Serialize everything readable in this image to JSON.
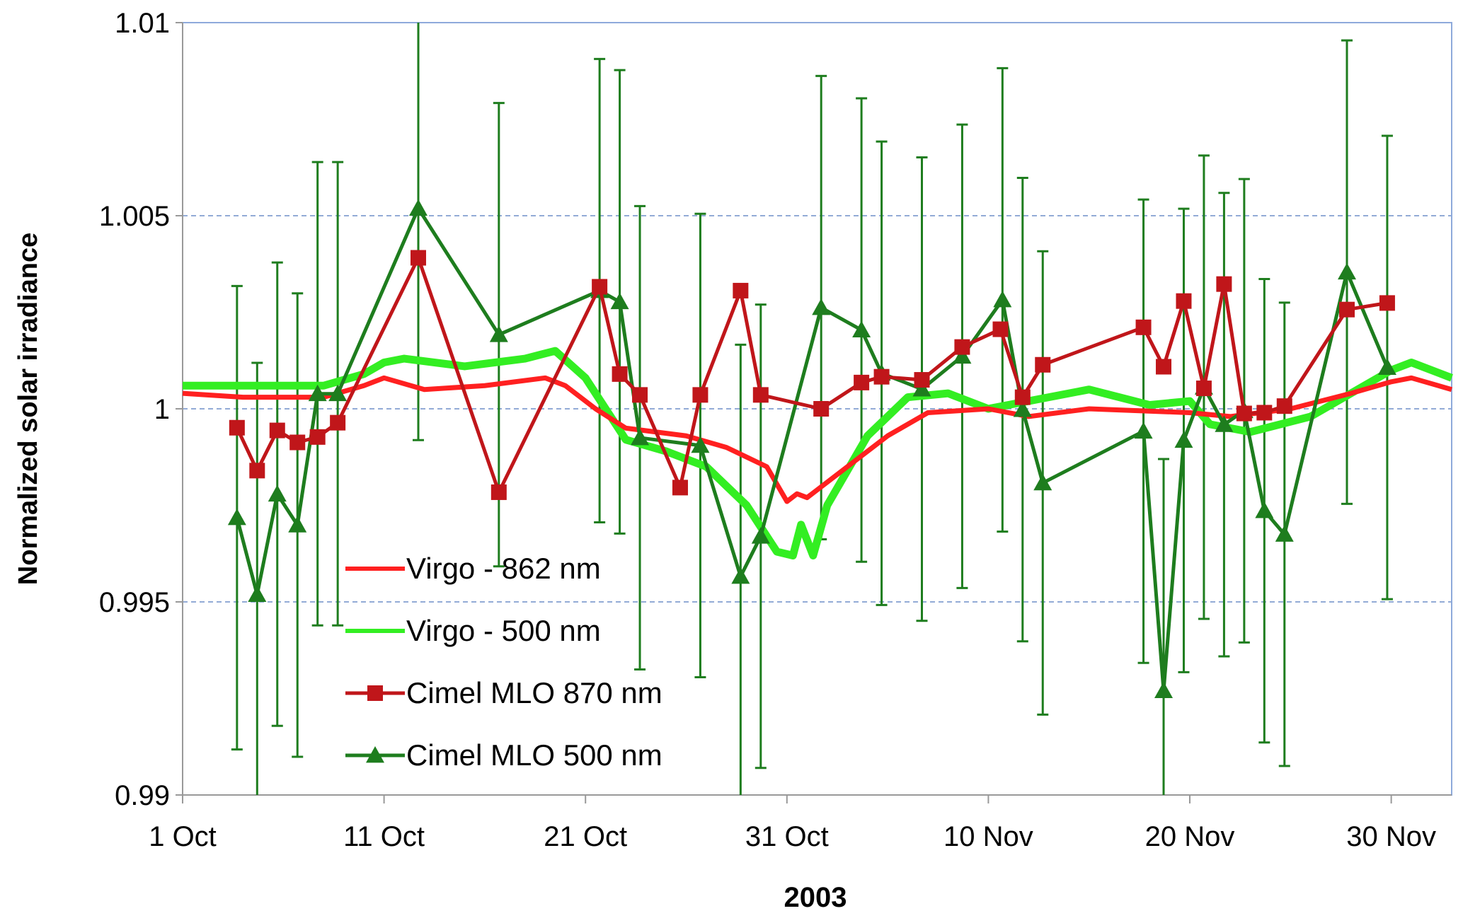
{
  "chart_data": {
    "type": "line",
    "title": "",
    "xlabel": "2003",
    "ylabel": "Normalized solar irradiance",
    "xlim": [
      0,
      63
    ],
    "ylim": [
      0.99,
      1.01
    ],
    "x_unit": "days since 1 Oct 2003",
    "x_ticks": [
      {
        "day": 0,
        "label": "1 Oct"
      },
      {
        "day": 10,
        "label": "11 Oct"
      },
      {
        "day": 20,
        "label": "21 Oct"
      },
      {
        "day": 30,
        "label": "31 Oct"
      },
      {
        "day": 40,
        "label": "10 Nov"
      },
      {
        "day": 50,
        "label": "20 Nov"
      },
      {
        "day": 60,
        "label": "30 Nov"
      }
    ],
    "y_ticks": [
      {
        "value": 0.99,
        "label": "0.99"
      },
      {
        "value": 0.995,
        "label": "0.995"
      },
      {
        "value": 1.0,
        "label": "1"
      },
      {
        "value": 1.005,
        "label": "1.005"
      },
      {
        "value": 1.01,
        "label": "1.01"
      }
    ],
    "grid": "horizontal dashed",
    "legend_position": "lower-left inside",
    "series": [
      {
        "name": "Virgo - 862 nm",
        "color": "#ff2020",
        "marker": "none",
        "x": [
          0,
          3,
          7,
          9,
          10,
          12,
          15,
          18,
          19,
          20.5,
          22,
          25,
          27,
          29,
          30,
          30.5,
          31,
          33,
          35,
          37,
          40,
          42,
          45,
          50,
          52,
          55,
          58,
          60,
          61,
          63
        ],
        "y": [
          1.0004,
          1.0003,
          1.0003,
          1.0006,
          1.0008,
          1.0005,
          1.0006,
          1.0008,
          1.0006,
          1.0,
          0.9995,
          0.9993,
          0.999,
          0.9985,
          0.9976,
          0.9978,
          0.9977,
          0.9985,
          0.9993,
          0.9999,
          1.0,
          0.9998,
          1.0,
          0.9999,
          0.9998,
          1.0,
          1.0004,
          1.0007,
          1.0008,
          1.0005
        ]
      },
      {
        "name": "Virgo - 500 nm",
        "color": "#33ee22",
        "marker": "none",
        "x": [
          0,
          3,
          7,
          9,
          10,
          11,
          14,
          17,
          18.5,
          20,
          21,
          22,
          24,
          26,
          28,
          29.5,
          30.3,
          30.7,
          31.3,
          32,
          34,
          36,
          38,
          40,
          43,
          45,
          48,
          50,
          51,
          53,
          56,
          58,
          60,
          61,
          63
        ],
        "y": [
          1.0006,
          1.0006,
          1.0006,
          1.0009,
          1.0012,
          1.0013,
          1.0011,
          1.0013,
          1.0015,
          1.0008,
          1.0,
          0.9992,
          0.9989,
          0.9985,
          0.9975,
          0.9963,
          0.9962,
          0.997,
          0.9962,
          0.9975,
          0.9993,
          1.0003,
          1.0004,
          1.0,
          1.0003,
          1.0005,
          1.0001,
          1.0002,
          0.9996,
          0.9994,
          0.9998,
          1.0004,
          1.001,
          1.0012,
          1.0008
        ]
      },
      {
        "name": "Cimel MLO 870 nm",
        "color": "#c0161a",
        "marker": "square",
        "x": [
          2.7,
          3.7,
          4.7,
          5.7,
          6.7,
          7.7,
          11.7,
          15.7,
          20.7,
          21.7,
          22.7,
          24.7,
          25.7,
          27.7,
          28.7,
          31.7,
          33.7,
          34.7,
          36.7,
          38.7,
          40.6,
          41.7,
          42.7,
          47.7,
          48.7,
          49.7,
          50.7,
          51.7,
          52.7,
          53.7,
          54.7,
          57.8,
          59.8
        ],
        "y": [
          0.99951,
          0.9984,
          0.99944,
          0.99913,
          0.99927,
          0.99964,
          1.00391,
          0.99784,
          1.00316,
          1.0009,
          1.00036,
          0.99796,
          1.00036,
          1.00306,
          1.00036,
          1.0,
          1.00068,
          1.00083,
          1.00075,
          1.0016,
          1.00206,
          1.0003,
          1.00114,
          1.00211,
          1.00109,
          1.00279,
          1.00053,
          1.00323,
          0.99988,
          0.9999,
          1.00007,
          1.00257,
          1.00274
        ]
      },
      {
        "name": "Cimel MLO 500 nm",
        "color": "#1e7d1e",
        "marker": "triangle",
        "error": 0.006,
        "x": [
          2.7,
          3.7,
          4.7,
          5.7,
          6.7,
          7.7,
          11.7,
          15.7,
          20.7,
          21.7,
          22.7,
          25.7,
          27.7,
          28.7,
          31.7,
          33.7,
          34.7,
          36.7,
          38.7,
          40.7,
          41.7,
          42.7,
          47.7,
          48.7,
          49.7,
          50.7,
          51.7,
          52.7,
          53.7,
          54.7,
          57.8,
          59.8
        ],
        "y": [
          0.99718,
          0.99519,
          0.99779,
          0.99699,
          1.00039,
          1.00039,
          1.00519,
          1.00192,
          1.00306,
          1.00277,
          0.99925,
          0.99905,
          0.99566,
          0.9967,
          1.00262,
          1.00204,
          1.00092,
          1.00051,
          1.00136,
          1.00282,
          0.99998,
          0.99808,
          0.99942,
          0.9927,
          0.99918,
          1.00056,
          0.99959,
          0.99995,
          0.99736,
          0.99675,
          1.00354,
          1.00107
        ]
      }
    ]
  }
}
